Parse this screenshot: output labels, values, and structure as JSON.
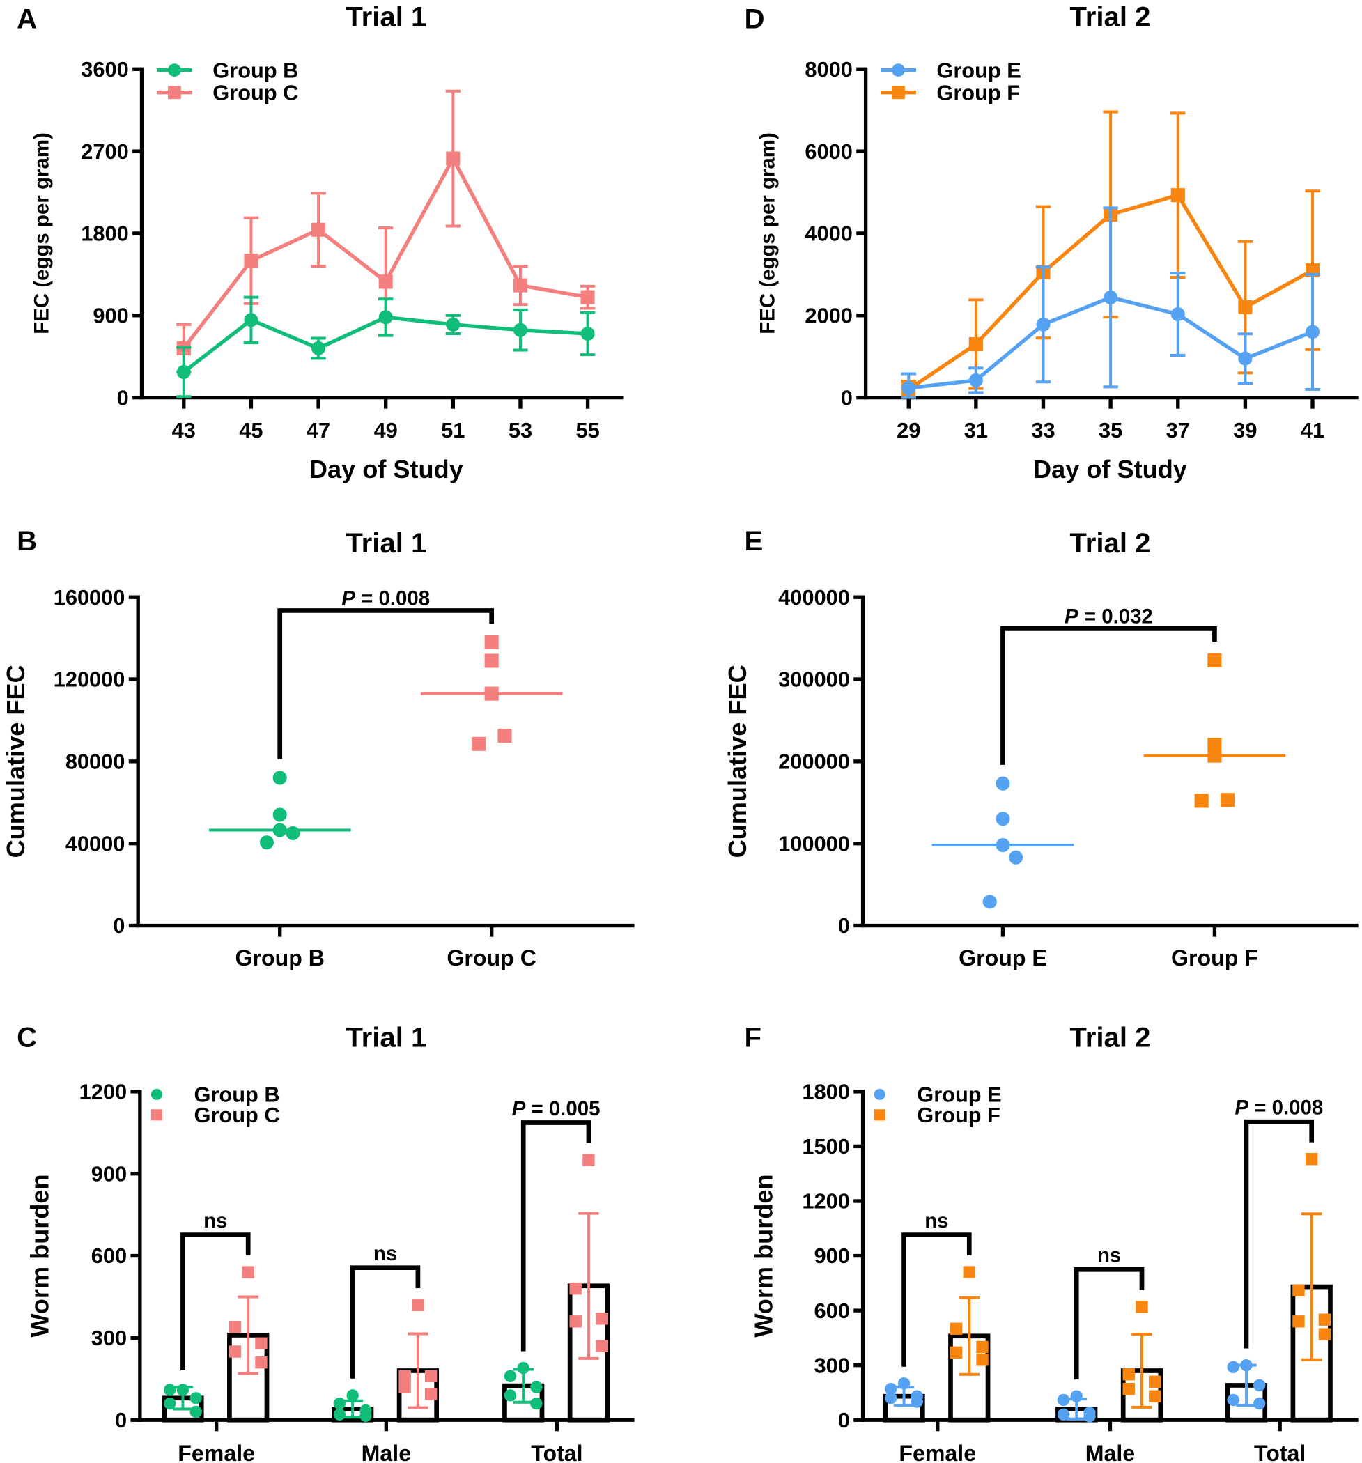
{
  "chart_data": [
    {
      "panel": "A",
      "type": "line",
      "title": "Trial 1",
      "xlabel": "Day of Study",
      "ylabel": "FEC (eggs per gram)",
      "ylim": [
        0,
        3600
      ],
      "yticks": [
        0,
        900,
        1800,
        2700,
        3600
      ],
      "x": [
        43,
        45,
        47,
        49,
        51,
        53,
        55
      ],
      "legend": "top-left",
      "series": [
        {
          "name": "Group B",
          "color": "#10be7a",
          "marker": "circle",
          "values": [
            280,
            850,
            540,
            880,
            800,
            740,
            700
          ],
          "error": [
            270,
            250,
            110,
            200,
            100,
            220,
            230
          ]
        },
        {
          "name": "Group C",
          "color": "#f47f7f",
          "marker": "square",
          "values": [
            540,
            1500,
            1840,
            1270,
            2620,
            1230,
            1100
          ],
          "error": [
            260,
            470,
            400,
            590,
            740,
            210,
            120
          ]
        }
      ]
    },
    {
      "panel": "D",
      "type": "line",
      "title": "Trial 2",
      "xlabel": "Day of Study",
      "ylabel": "FEC (eggs per gram)",
      "ylim": [
        0,
        8000
      ],
      "yticks": [
        0,
        2000,
        4000,
        6000,
        8000
      ],
      "x": [
        29,
        31,
        33,
        35,
        37,
        39,
        41
      ],
      "legend": "top-left",
      "series": [
        {
          "name": "Group E",
          "color": "#55a1f2",
          "marker": "circle",
          "values": [
            230,
            420,
            1780,
            2440,
            2030,
            950,
            1600
          ],
          "error": [
            350,
            300,
            1400,
            2180,
            1000,
            600,
            1400
          ]
        },
        {
          "name": "Group F",
          "color": "#f7850f",
          "marker": "square",
          "values": [
            200,
            1300,
            3050,
            4460,
            4930,
            2200,
            3100
          ],
          "error": [
            200,
            1080,
            1600,
            2500,
            2000,
            1600,
            1930
          ]
        }
      ]
    },
    {
      "panel": "B",
      "type": "scatter",
      "title": "Trial 1",
      "xlabel": "",
      "ylabel": "Cumulative FEC",
      "ylim": [
        0,
        160000
      ],
      "yticks": [
        0,
        40000,
        80000,
        120000,
        160000
      ],
      "categories": [
        "Group B",
        "Group C"
      ],
      "series": [
        {
          "name": "Group B",
          "color": "#10be7a",
          "marker": "circle",
          "values": [
            72000,
            54000,
            46500,
            45000,
            40500
          ],
          "median": 46500
        },
        {
          "name": "Group C",
          "color": "#f47f7f",
          "marker": "square",
          "values": [
            138000,
            129000,
            113000,
            92500,
            88500
          ],
          "median": 113000
        }
      ],
      "comparison": "P = 0.008"
    },
    {
      "panel": "E",
      "type": "scatter",
      "title": "Trial 2",
      "xlabel": "",
      "ylabel": "Cumulative FEC",
      "ylim": [
        0,
        400000
      ],
      "yticks": [
        0,
        100000,
        200000,
        300000,
        400000
      ],
      "categories": [
        "Group E",
        "Group F"
      ],
      "series": [
        {
          "name": "Group E",
          "color": "#55a1f2",
          "marker": "circle",
          "values": [
            173000,
            130000,
            98000,
            83000,
            29000
          ],
          "median": 98000
        },
        {
          "name": "Group F",
          "color": "#f7850f",
          "marker": "square",
          "values": [
            323000,
            220000,
            207000,
            153000,
            152000
          ],
          "median": 207000
        }
      ],
      "comparison": "P = 0.032"
    },
    {
      "panel": "C",
      "type": "bar",
      "title": "Trial 1",
      "xlabel": "",
      "ylabel": "Worm burden",
      "ylim": [
        0,
        1200
      ],
      "yticks": [
        0,
        300,
        600,
        900,
        1200
      ],
      "categories": [
        "Female",
        "Male",
        "Total"
      ],
      "legend": "top-left",
      "series": [
        {
          "name": "Group B",
          "color": "#10be7a",
          "marker": "circle",
          "values": [
            80,
            40,
            125
          ],
          "error": [
            40,
            30,
            60
          ],
          "points": [
            [
              110,
              110,
              80,
              60,
              30
            ],
            [
              90,
              60,
              35,
              20,
              15
            ],
            [
              190,
              160,
              120,
              90,
              60
            ]
          ]
        },
        {
          "name": "Group C",
          "color": "#f47f7f",
          "marker": "square",
          "values": [
            310,
            180,
            490
          ],
          "error": [
            140,
            135,
            265
          ],
          "points": [
            [
              540,
              340,
              280,
              250,
              210
            ],
            [
              420,
              160,
              160,
              120,
              95
            ],
            [
              950,
              480,
              370,
              360,
              270
            ]
          ]
        }
      ],
      "comparisons": [
        "ns",
        "ns",
        "P = 0.005"
      ]
    },
    {
      "panel": "F",
      "type": "bar",
      "title": "Trial 2",
      "xlabel": "",
      "ylabel": "Worm burden",
      "ylim": [
        0,
        1800
      ],
      "yticks": [
        0,
        300,
        600,
        900,
        1200,
        1500,
        1800
      ],
      "categories": [
        "Female",
        "Male",
        "Total"
      ],
      "legend": "top-left",
      "series": [
        {
          "name": "Group E",
          "color": "#55a1f2",
          "marker": "circle",
          "values": [
            130,
            60,
            190
          ],
          "error": [
            50,
            55,
            110
          ],
          "points": [
            [
              200,
              170,
              130,
              120,
              100
            ],
            [
              130,
              110,
              40,
              30,
              20
            ],
            [
              300,
              290,
              190,
              110,
              90
            ]
          ]
        },
        {
          "name": "Group F",
          "color": "#f7850f",
          "marker": "square",
          "values": [
            460,
            270,
            730
          ],
          "error": [
            210,
            200,
            400
          ],
          "points": [
            [
              810,
              500,
              400,
              370,
              330
            ],
            [
              620,
              250,
              210,
              170,
              130
            ],
            [
              1430,
              710,
              550,
              540,
              470
            ]
          ]
        }
      ],
      "comparisons": [
        "ns",
        "ns",
        "P = 0.008"
      ]
    }
  ]
}
